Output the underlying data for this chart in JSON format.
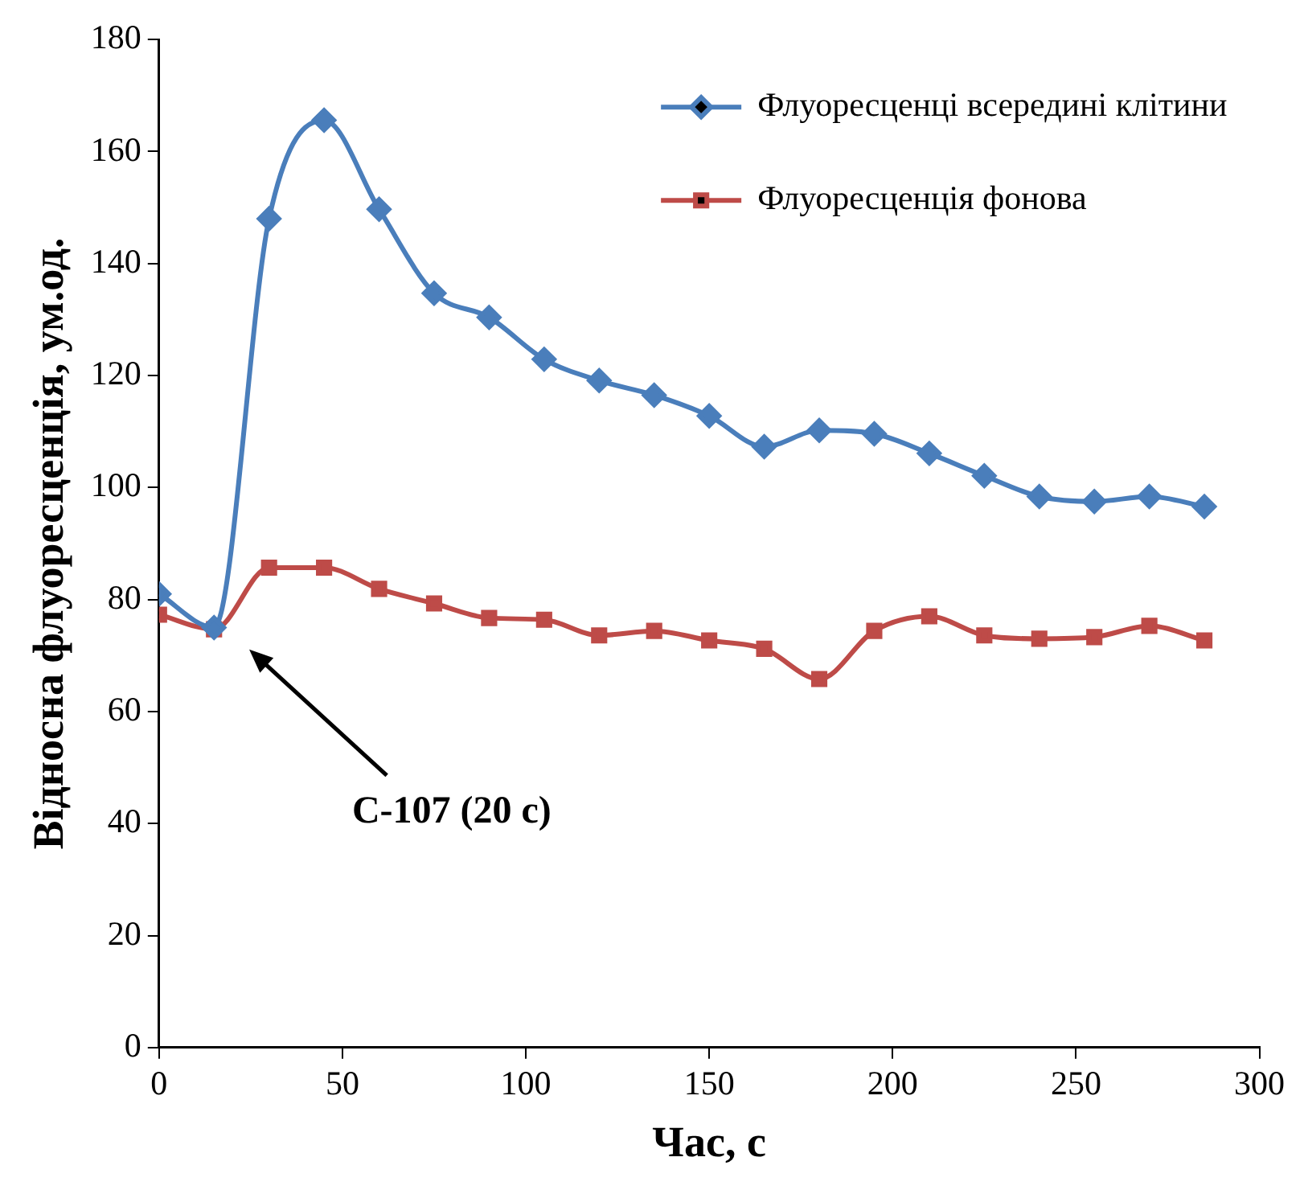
{
  "chart_data": {
    "type": "line",
    "xlabel": "Час, с",
    "ylabel": "Відносна флуоресценція, ум.од.",
    "x": [
      0,
      15,
      30,
      45,
      60,
      75,
      90,
      105,
      120,
      135,
      150,
      165,
      180,
      195,
      210,
      225,
      240,
      255,
      270,
      285
    ],
    "series": [
      {
        "name": "Флуоресценці всередині клітини",
        "color": "#4a7ebb",
        "marker": "diamond",
        "values": [
          81,
          75,
          148,
          165.6,
          149.7,
          134.7,
          130.4,
          122.9,
          119.1,
          116.5,
          112.8,
          107.3,
          110.2,
          109.6,
          106.1,
          102.1,
          98.4,
          97.5,
          98.4,
          96.6
        ]
      },
      {
        "name": "Флуоресценція фонова",
        "color": "#be4b48",
        "marker": "square",
        "values": [
          77.3,
          74.7,
          85.7,
          85.7,
          81.9,
          79.3,
          76.7,
          76.4,
          73.6,
          74.4,
          72.7,
          71.2,
          65.8,
          74.4,
          77,
          73.6,
          73,
          73.3,
          75.3,
          72.7
        ]
      }
    ],
    "xlim": [
      0,
      300
    ],
    "xticks": [
      0,
      50,
      100,
      150,
      200,
      250,
      300
    ],
    "ylim": [
      0,
      180
    ],
    "yticks": [
      0,
      20,
      40,
      60,
      80,
      100,
      120,
      140,
      160,
      180
    ],
    "legend": "top right",
    "annotations": [
      "С-107 (20 с)"
    ]
  }
}
